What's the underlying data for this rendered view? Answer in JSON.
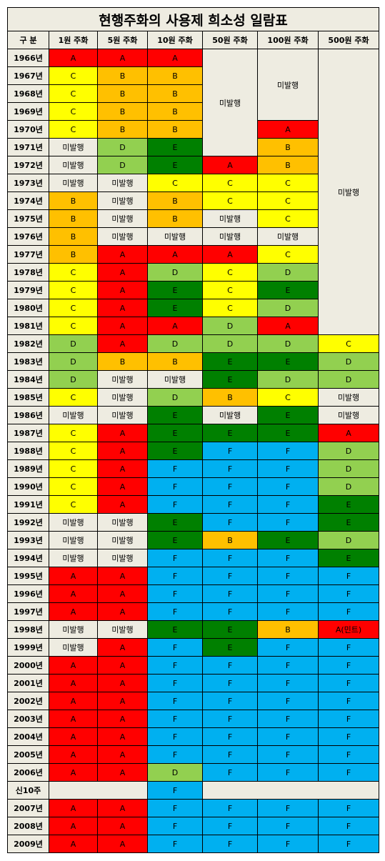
{
  "title": "현행주화의 사용제 희소성 일람표",
  "headers": [
    "구 분",
    "1원 주화",
    "5원 주화",
    "10원 주화",
    "50원 주화",
    "100원 주화",
    "500원 주화"
  ],
  "grade_colors": {
    "A": "#ff0000",
    "B": "#ffc000",
    "C": "#ffff00",
    "D": "#92d050",
    "E": "#008000",
    "F": "#00b0f0",
    "미발행": "#eeece1"
  },
  "rows": [
    {
      "label": "1966년",
      "cells": [
        "A",
        "A",
        "A",
        {
          "text": "미발행",
          "rowspan": 6
        },
        {
          "text": "미발행",
          "rowspan": 4
        },
        {
          "text": "미발행",
          "rowspan": 16
        }
      ]
    },
    {
      "label": "1967년",
      "cells": [
        "C",
        "B",
        "B"
      ]
    },
    {
      "label": "1968년",
      "cells": [
        "C",
        "B",
        "B"
      ]
    },
    {
      "label": "1969년",
      "cells": [
        "C",
        "B",
        "B"
      ]
    },
    {
      "label": "1970년",
      "cells": [
        "C",
        "B",
        "B",
        "A"
      ]
    },
    {
      "label": "1971년",
      "cells": [
        "미발행",
        "D",
        "E",
        "B"
      ]
    },
    {
      "label": "1972년",
      "cells": [
        "미발행",
        "D",
        "E",
        "A",
        "B"
      ]
    },
    {
      "label": "1973년",
      "cells": [
        "미발행",
        "미발행",
        "C",
        "C",
        "C"
      ]
    },
    {
      "label": "1974년",
      "cells": [
        "B",
        "미발행",
        "B",
        "C",
        "C"
      ]
    },
    {
      "label": "1975년",
      "cells": [
        "B",
        "미발행",
        "B",
        "미발행",
        "C"
      ]
    },
    {
      "label": "1976년",
      "cells": [
        "B",
        "미발행",
        "미발행",
        "미발행",
        "미발행"
      ]
    },
    {
      "label": "1977년",
      "cells": [
        "B",
        "A",
        "A",
        "A",
        "C"
      ]
    },
    {
      "label": "1978년",
      "cells": [
        "C",
        "A",
        "D",
        "C",
        "D"
      ]
    },
    {
      "label": "1979년",
      "cells": [
        "C",
        "A",
        "E",
        "C",
        "E"
      ]
    },
    {
      "label": "1980년",
      "cells": [
        "C",
        "A",
        "E",
        "C",
        "D"
      ]
    },
    {
      "label": "1981년",
      "cells": [
        "C",
        "A",
        "A",
        "D",
        "A"
      ]
    },
    {
      "label": "1982년",
      "cells": [
        "D",
        "A",
        "D",
        "D",
        "D",
        "C"
      ]
    },
    {
      "label": "1983년",
      "cells": [
        "D",
        "B",
        "B",
        "E",
        "E",
        "D"
      ]
    },
    {
      "label": "1984년",
      "cells": [
        "D",
        "미발행",
        "미발행",
        "E",
        "D",
        "D"
      ]
    },
    {
      "label": "1985년",
      "cells": [
        "C",
        "미발행",
        "D",
        "B",
        "C",
        "미발행"
      ]
    },
    {
      "label": "1986년",
      "cells": [
        "미발행",
        "미발행",
        "E",
        "미발행",
        "E",
        "미발행"
      ]
    },
    {
      "label": "1987년",
      "cells": [
        "C",
        "A",
        "E",
        "E",
        "E",
        "A"
      ]
    },
    {
      "label": "1988년",
      "cells": [
        "C",
        "A",
        "E",
        "F",
        "F",
        "D"
      ]
    },
    {
      "label": "1989년",
      "cells": [
        "C",
        "A",
        "F",
        "F",
        "F",
        "D"
      ]
    },
    {
      "label": "1990년",
      "cells": [
        "C",
        "A",
        "F",
        "F",
        "F",
        "D"
      ]
    },
    {
      "label": "1991년",
      "cells": [
        "C",
        "A",
        "F",
        "F",
        "F",
        "E"
      ]
    },
    {
      "label": "1992년",
      "cells": [
        "미발행",
        "미발행",
        "E",
        "F",
        "F",
        "E"
      ]
    },
    {
      "label": "1993년",
      "cells": [
        "미발행",
        "미발행",
        "E",
        "B",
        "E",
        "D"
      ]
    },
    {
      "label": "1994년",
      "cells": [
        "미발행",
        "미발행",
        "F",
        "F",
        "F",
        "E"
      ]
    },
    {
      "label": "1995년",
      "cells": [
        "A",
        "A",
        "F",
        "F",
        "F",
        "F"
      ]
    },
    {
      "label": "1996년",
      "cells": [
        "A",
        "A",
        "F",
        "F",
        "F",
        "F"
      ]
    },
    {
      "label": "1997년",
      "cells": [
        "A",
        "A",
        "F",
        "F",
        "F",
        "F"
      ]
    },
    {
      "label": "1998년",
      "cells": [
        "미발행",
        "미발행",
        "E",
        "E",
        "B",
        "A(민트)"
      ]
    },
    {
      "label": "1999년",
      "cells": [
        "미발행",
        "A",
        "F",
        "E",
        "F",
        "F"
      ]
    },
    {
      "label": "2000년",
      "cells": [
        "A",
        "A",
        "F",
        "F",
        "F",
        "F"
      ]
    },
    {
      "label": "2001년",
      "cells": [
        "A",
        "A",
        "F",
        "F",
        "F",
        "F"
      ]
    },
    {
      "label": "2002년",
      "cells": [
        "A",
        "A",
        "F",
        "F",
        "F",
        "F"
      ]
    },
    {
      "label": "2003년",
      "cells": [
        "A",
        "A",
        "F",
        "F",
        "F",
        "F"
      ]
    },
    {
      "label": "2004년",
      "cells": [
        "A",
        "A",
        "F",
        "F",
        "F",
        "F"
      ]
    },
    {
      "label": "2005년",
      "cells": [
        "A",
        "A",
        "F",
        "F",
        "F",
        "F"
      ]
    },
    {
      "label": "2006년",
      "cells": [
        "A",
        "A",
        "D",
        "F",
        "F",
        "F"
      ]
    },
    {
      "label": "신10주",
      "cells": [
        {
          "colspan": 2
        },
        "F",
        {
          "colspan": 3
        }
      ]
    },
    {
      "label": "2007년",
      "cells": [
        "A",
        "A",
        "F",
        "F",
        "F",
        "F"
      ]
    },
    {
      "label": "2008년",
      "cells": [
        "A",
        "A",
        "F",
        "F",
        "F",
        "F"
      ]
    },
    {
      "label": "2009년",
      "cells": [
        "A",
        "A",
        "F",
        "F",
        "F",
        "F"
      ]
    }
  ]
}
